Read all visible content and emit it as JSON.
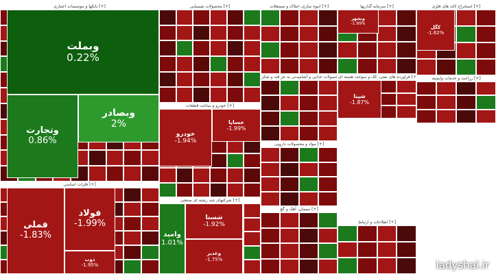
{
  "chart_data": {
    "type": "treemap",
    "unit": "%",
    "colors": {
      "pos_strong": "#0d5e0d",
      "pos_mid": "#1c7a1c",
      "pos_light": "#2e9a2e",
      "neg_light": "#a31616",
      "neg_mid": "#7d0b0b",
      "neg_dark": "#5a0808",
      "neutral": "#4a0a0a"
    },
    "sectors": [
      {
        "title": "بانکها و موسسات اعتباری [+]",
        "tiles": [
          {
            "name": "وبملت",
            "change": 0.22
          },
          {
            "name": "وتجارت",
            "change": 0.86
          },
          {
            "name": "وبصادر",
            "change": 2
          }
        ]
      },
      {
        "title": "فلزات اساسی [+]",
        "tiles": [
          {
            "name": "فملی",
            "change": -1.83
          },
          {
            "name": "فولاد",
            "change": -1.99
          },
          {
            "name": "ذوب",
            "change": -1.95
          }
        ]
      },
      {
        "title": "محصولات شیمیایی [+]",
        "tiles": []
      },
      {
        "title": "خودرو و ساخت قطعات [+]",
        "tiles": [
          {
            "name": "خساپا",
            "change": -1.99
          },
          {
            "name": "خودرو",
            "change": -1.94
          }
        ]
      },
      {
        "title": "شرکتهای چند رشته ای صنعتی [+]",
        "tiles": [
          {
            "name": "شستا",
            "change": -1.92
          },
          {
            "name": "وامید",
            "change": 1.01
          },
          {
            "name": "وغدیر",
            "change": -1.75
          }
        ]
      },
      {
        "title": "انبوه سازی، املاک و مستغلات [+]",
        "tiles": []
      },
      {
        "title": "محصولات غذایی و آشامیدنی به جز قند و شکر [+]",
        "tiles": []
      },
      {
        "title": "مواد و محصولات دارویی [+]",
        "tiles": []
      },
      {
        "title": "سیمان، آهک و گچ [+]",
        "tiles": []
      },
      {
        "title": "سرمایه گذاریها [+]",
        "tiles": [
          {
            "name": "وبشهر",
            "change": -1.99
          }
        ]
      },
      {
        "title": "فراورده های نفتی، کک و سوخت هسته ای [+]",
        "tiles": [
          {
            "name": "شپنا",
            "change": -1.87
          }
        ]
      },
      {
        "title": "استخراج کانه های فلزی [+]",
        "tiles": [
          {
            "name": "کگل",
            "change": -1.62
          }
        ]
      },
      {
        "title": "زراعت و خدمات وابسته [+]",
        "tiles": []
      },
      {
        "title": "اطلاعات و ارتباط [+]",
        "tiles": []
      }
    ],
    "watermark": "ladyshal.ir"
  }
}
